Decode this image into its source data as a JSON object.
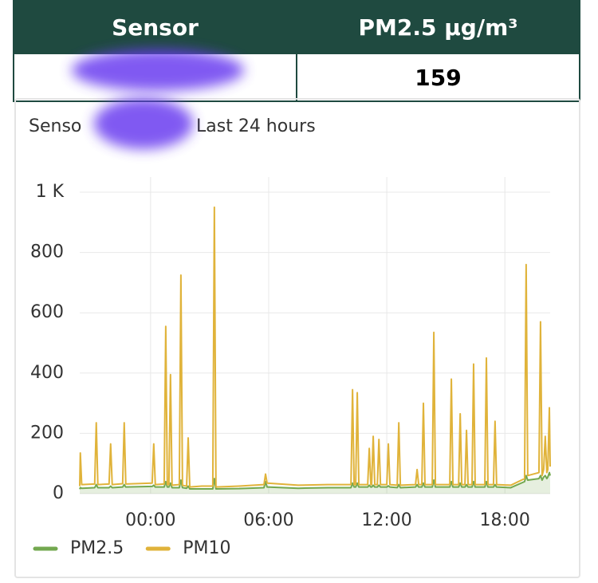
{
  "table": {
    "headers": [
      "Sensor",
      "PM2.5 µg/m³"
    ],
    "rows": [
      {
        "pm25": 159
      }
    ]
  },
  "chart_data": {
    "type": "line",
    "title_start": "Senso",
    "title_end": "Last 24 hours",
    "x": [
      -3.6,
      -3.57,
      -3.5,
      -2.84,
      -2.76,
      -2.68,
      -2.11,
      -2.03,
      -1.95,
      -1.42,
      -1.34,
      -1.26,
      0.08,
      0.16,
      0.24,
      0.69,
      0.77,
      0.85,
      0.93,
      1.01,
      1.09,
      1.46,
      1.54,
      1.62,
      1.83,
      1.91,
      1.99,
      2.6,
      3.16,
      3.24,
      3.32,
      4.5,
      5.76,
      5.84,
      5.92,
      7.5,
      9.0,
      10.18,
      10.26,
      10.34,
      10.42,
      10.5,
      10.58,
      11.03,
      11.11,
      11.19,
      11.23,
      11.31,
      11.39,
      11.52,
      11.6,
      11.68,
      12.0,
      12.08,
      12.16,
      12.53,
      12.61,
      12.69,
      13.46,
      13.54,
      13.62,
      13.78,
      13.86,
      13.94,
      14.31,
      14.39,
      14.47,
      15.2,
      15.28,
      15.36,
      15.65,
      15.73,
      15.81,
      15.97,
      16.05,
      16.13,
      16.33,
      16.41,
      16.49,
      16.98,
      17.06,
      17.14,
      17.42,
      17.5,
      17.58,
      18.3,
      19.0,
      19.08,
      19.16,
      19.73,
      19.81,
      19.89,
      19.97,
      20.05,
      20.13,
      20.18,
      20.26,
      20.3
    ],
    "series": [
      {
        "name": "PM2.5",
        "color": "#73a84f",
        "area": true,
        "values": [
          15,
          20,
          18,
          20,
          30,
          20,
          20,
          25,
          20,
          22,
          30,
          22,
          24,
          28,
          22,
          22,
          40,
          22,
          22,
          35,
          20,
          20,
          45,
          20,
          18,
          25,
          16,
          16,
          16,
          50,
          16,
          17,
          20,
          40,
          22,
          18,
          20,
          20,
          35,
          22,
          22,
          35,
          22,
          22,
          28,
          22,
          22,
          28,
          22,
          22,
          28,
          22,
          22,
          26,
          22,
          20,
          30,
          20,
          22,
          30,
          22,
          22,
          35,
          22,
          22,
          45,
          22,
          22,
          40,
          22,
          22,
          35,
          22,
          22,
          30,
          22,
          22,
          40,
          22,
          22,
          40,
          22,
          22,
          30,
          22,
          20,
          40,
          60,
          45,
          50,
          60,
          45,
          55,
          60,
          50,
          55,
          70,
          60
        ]
      },
      {
        "name": "PM10",
        "color": "#e0b33a",
        "area": false,
        "values": [
          25,
          135,
          30,
          32,
          235,
          30,
          32,
          165,
          30,
          33,
          235,
          32,
          35,
          165,
          30,
          32,
          555,
          30,
          30,
          395,
          28,
          30,
          725,
          28,
          25,
          185,
          22,
          25,
          25,
          950,
          22,
          25,
          30,
          65,
          35,
          28,
          30,
          30,
          345,
          30,
          30,
          335,
          30,
          30,
          150,
          30,
          30,
          190,
          30,
          30,
          180,
          30,
          30,
          165,
          30,
          28,
          235,
          28,
          30,
          80,
          30,
          30,
          300,
          30,
          30,
          535,
          30,
          30,
          380,
          30,
          30,
          265,
          30,
          30,
          210,
          30,
          30,
          430,
          30,
          30,
          450,
          30,
          30,
          240,
          30,
          28,
          50,
          760,
          60,
          70,
          570,
          60,
          80,
          190,
          70,
          80,
          285,
          90
        ]
      }
    ],
    "xlim": [
      -3.6,
      20.3
    ],
    "xticks": [
      {
        "value": 0,
        "label": "00:00"
      },
      {
        "value": 6,
        "label": "06:00"
      },
      {
        "value": 12,
        "label": "12:00"
      },
      {
        "value": 18,
        "label": "18:00"
      }
    ],
    "ylim": [
      0,
      1000
    ],
    "yticks": [
      0,
      200,
      400,
      600,
      800,
      {
        "value": 1000,
        "label": "1 K"
      }
    ],
    "grid": true,
    "legend": "bottom-left"
  }
}
